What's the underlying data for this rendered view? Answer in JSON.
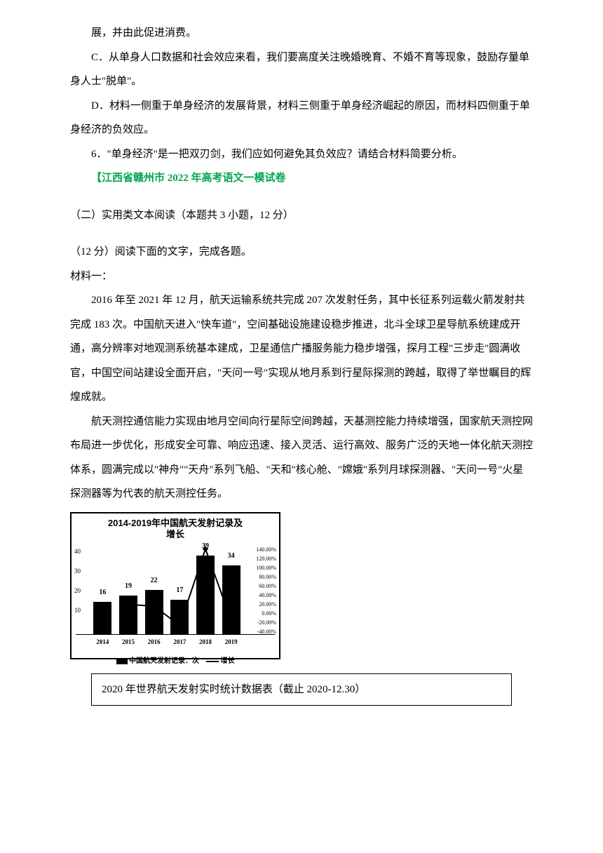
{
  "paragraphs": {
    "p1": "展，并由此促进消费。",
    "p2": "C．从单身人口数据和社会效应来看，我们要高度关注晚婚晚育、不婚不育等现象，鼓励存量单身人士\"脱单\"。",
    "p3": "D．材料一侧重于单身经济的发展背景，材料三侧重于单身经济崛起的原因，而材料四侧重于单身经济的负效应。",
    "p4": "6．\"单身经济\"是一把双刃剑，我们应如何避免其负效应？请结合材料简要分析。",
    "source": "【江西省赣州市 2022 年高考语文一模试卷",
    "section_header": "（二）实用类文本阅读（本题共 3 小题，12 分）",
    "instruction": "（12 分）阅读下面的文字，完成各题。",
    "material_label": "材料一：",
    "p5": "2016 年至 2021 年 12 月，航天运输系统共完成 207 次发射任务，其中长征系列运载火箭发射共完成 183 次。中国航天进入\"快车道\"，空间基础设施建设稳步推进，北斗全球卫星导航系统建成开通，高分辨率对地观测系统基本建成，卫星通信广播服务能力稳步增强，探月工程\"三步走\"圆满收官，中国空间站建设全面开启，\"天问一号\"实现从地月系到行星际探测的跨越，取得了举世瞩目的辉煌成就。",
    "p6": "航天测控通信能力实现由地月空间向行星际空间跨越，天基测控能力持续增强，国家航天测控网布局进一步优化，形成安全可靠、响应迅速、接入灵活、运行高效、服务广泛的天地一体化航天测控体系，圆满完成以\"神舟\"\"天舟\"系列飞船、\"天和\"核心舱、\"嫦娥\"系列月球探测器、\"天问一号\"火星探测器等为代表的航天测控任务。"
  },
  "chart": {
    "title_line1": "2014-2019年中国航天发射记录及",
    "title_line2": "增长",
    "type": "bar+line",
    "years": [
      "2014",
      "2015",
      "2016",
      "2017",
      "2018",
      "2019"
    ],
    "bar_values": [
      16,
      19,
      22,
      17,
      39,
      34
    ],
    "bar_colors": "#000000",
    "y_left_ticks": [
      "10",
      "20",
      "30",
      "40"
    ],
    "y_left_max": 45,
    "y_right_ticks": [
      "140.00%",
      "120.00%",
      "100.00%",
      "80.00%",
      "60.00%",
      "40.00%",
      "20.00%",
      "0.00%",
      "-20.00%",
      "-40.00%"
    ],
    "legend_bar": "中国航天发射记录：次",
    "legend_line": "增长",
    "line_color": "#000000",
    "line_marker": "diamond"
  },
  "table": {
    "title": "2020 年世界航天发射实时统计数据表（截止 2020-12.30）"
  }
}
